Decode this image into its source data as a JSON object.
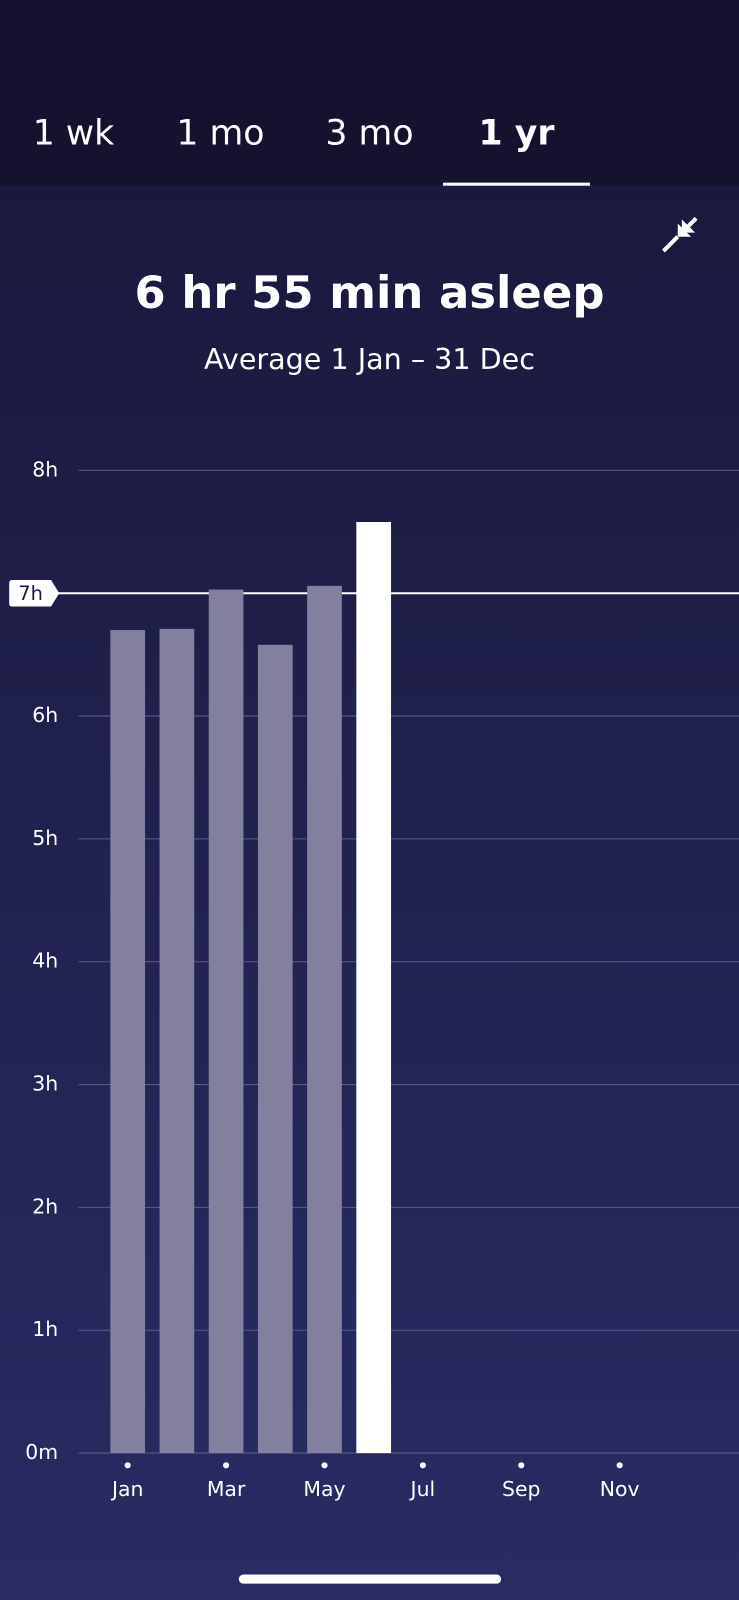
{
  "tabs": [
    "1 wk",
    "1 mo",
    "3 mo",
    "1 yr"
  ],
  "selected_tab": 3,
  "chart_data": {
    "type": "bar",
    "title": "6 hr 55 min asleep",
    "subtitle": "Average 1 Jan – 31 Dec",
    "categories": [
      "Jan",
      null,
      "Mar",
      null,
      "May",
      null,
      "Jul",
      null,
      "Sep",
      null,
      "Nov",
      null
    ],
    "values": [
      6.7,
      6.71,
      7.03,
      6.58,
      7.06,
      7.58,
      null,
      null,
      null,
      null,
      null,
      null
    ],
    "colors": [
      "#837f9f",
      "#837f9f",
      "#837f9f",
      "#837f9f",
      "#837f9f",
      "#ffffff",
      null,
      null,
      null,
      null,
      null,
      null
    ],
    "ylim": [
      0,
      8
    ],
    "yticks": [
      {
        "value": 0,
        "label": "0m"
      },
      {
        "value": 1,
        "label": "1h"
      },
      {
        "value": 2,
        "label": "2h"
      },
      {
        "value": 3,
        "label": "3h"
      },
      {
        "value": 4,
        "label": "4h"
      },
      {
        "value": 5,
        "label": "5h"
      },
      {
        "value": 6,
        "label": "6h"
      },
      {
        "value": 7,
        "label": "7h"
      },
      {
        "value": 8,
        "label": "8h"
      }
    ],
    "goal": 7,
    "grid": true
  }
}
